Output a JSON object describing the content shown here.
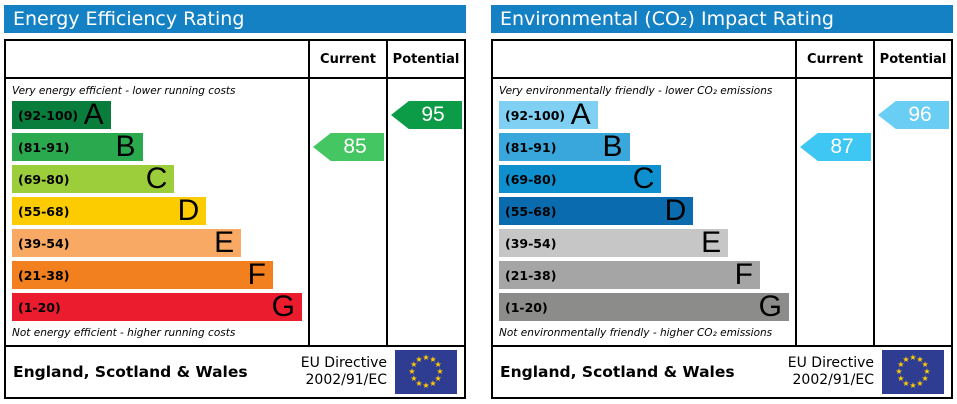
{
  "colors": {
    "header_bar": "#1581c5",
    "border": "#000000",
    "eu_flag_bg": "#2e3d91",
    "eu_star": "#ffcc00"
  },
  "panels": [
    {
      "title": "Energy Efficiency Rating",
      "columns": {
        "current": "Current",
        "potential": "Potential"
      },
      "top_note": "Very energy efficient - lower running costs",
      "bottom_note": "Not energy efficient - higher running costs",
      "bands": [
        {
          "range": "(92-100)",
          "letter": "A",
          "color": "#087d3c",
          "width_pct": 34
        },
        {
          "range": "(81-91)",
          "letter": "B",
          "color": "#2aa94f",
          "width_pct": 45
        },
        {
          "range": "(69-80)",
          "letter": "C",
          "color": "#9ccd3b",
          "width_pct": 56
        },
        {
          "range": "(55-68)",
          "letter": "D",
          "color": "#fdcc00",
          "width_pct": 67
        },
        {
          "range": "(39-54)",
          "letter": "E",
          "color": "#f8a964",
          "width_pct": 79
        },
        {
          "range": "(21-38)",
          "letter": "F",
          "color": "#f2801e",
          "width_pct": 90
        },
        {
          "range": "(1-20)",
          "letter": "G",
          "color": "#ea1c2d",
          "width_pct": 100
        }
      ],
      "current": {
        "value": "85",
        "band_index": 1,
        "color": "#44c663"
      },
      "potential": {
        "value": "95",
        "band_index": 0,
        "color": "#0c9b46"
      },
      "footer": {
        "region": "England, Scotland & Wales",
        "directive_line1": "EU Directive",
        "directive_line2": "2002/91/EC"
      }
    },
    {
      "title": "Environmental (CO₂) Impact Rating",
      "columns": {
        "current": "Current",
        "potential": "Potential"
      },
      "top_note": "Very environmentally friendly - lower CO₂ emissions",
      "bottom_note": "Not environmentally friendly - higher CO₂ emissions",
      "bands": [
        {
          "range": "(92-100)",
          "letter": "A",
          "color": "#7fd0f2",
          "width_pct": 34
        },
        {
          "range": "(81-91)",
          "letter": "B",
          "color": "#39a7dc",
          "width_pct": 45
        },
        {
          "range": "(69-80)",
          "letter": "C",
          "color": "#0e90ce",
          "width_pct": 56
        },
        {
          "range": "(55-68)",
          "letter": "D",
          "color": "#0a6caf",
          "width_pct": 67
        },
        {
          "range": "(39-54)",
          "letter": "E",
          "color": "#c7c6c6",
          "width_pct": 79
        },
        {
          "range": "(21-38)",
          "letter": "F",
          "color": "#a5a5a5",
          "width_pct": 90
        },
        {
          "range": "(1-20)",
          "letter": "G",
          "color": "#8c8c8b",
          "width_pct": 100
        }
      ],
      "current": {
        "value": "87",
        "band_index": 1,
        "color": "#3ec7f2"
      },
      "potential": {
        "value": "96",
        "band_index": 0,
        "color": "#69cdf4"
      },
      "footer": {
        "region": "England, Scotland & Wales",
        "directive_line1": "EU Directive",
        "directive_line2": "2002/91/EC"
      }
    }
  ],
  "chart_data": [
    {
      "type": "bar",
      "title": "Energy Efficiency Rating",
      "categories": [
        "A",
        "B",
        "C",
        "D",
        "E",
        "F",
        "G"
      ],
      "band_ranges": [
        "92-100",
        "81-91",
        "69-80",
        "55-68",
        "39-54",
        "21-38",
        "1-20"
      ],
      "band_colors": [
        "#087d3c",
        "#2aa94f",
        "#9ccd3b",
        "#fdcc00",
        "#f8a964",
        "#f2801e",
        "#ea1c2d"
      ],
      "current": 85,
      "current_band": "B",
      "potential": 95,
      "potential_band": "A",
      "scale_range": [
        1,
        100
      ],
      "columns": [
        "Current",
        "Potential"
      ],
      "top_label": "Very energy efficient - lower running costs",
      "bottom_label": "Not energy efficient - higher running costs",
      "footer_region": "England, Scotland & Wales",
      "footer_directive": "EU Directive 2002/91/EC"
    },
    {
      "type": "bar",
      "title": "Environmental (CO₂) Impact Rating",
      "categories": [
        "A",
        "B",
        "C",
        "D",
        "E",
        "F",
        "G"
      ],
      "band_ranges": [
        "92-100",
        "81-91",
        "69-80",
        "55-68",
        "39-54",
        "21-38",
        "1-20"
      ],
      "band_colors": [
        "#7fd0f2",
        "#39a7dc",
        "#0e90ce",
        "#0a6caf",
        "#c7c6c6",
        "#a5a5a5",
        "#8c8c8b"
      ],
      "current": 87,
      "current_band": "B",
      "potential": 96,
      "potential_band": "A",
      "scale_range": [
        1,
        100
      ],
      "columns": [
        "Current",
        "Potential"
      ],
      "top_label": "Very environmentally friendly - lower CO₂ emissions",
      "bottom_label": "Not environmentally friendly - higher CO₂ emissions",
      "footer_region": "England, Scotland & Wales",
      "footer_directive": "EU Directive 2002/91/EC"
    }
  ]
}
